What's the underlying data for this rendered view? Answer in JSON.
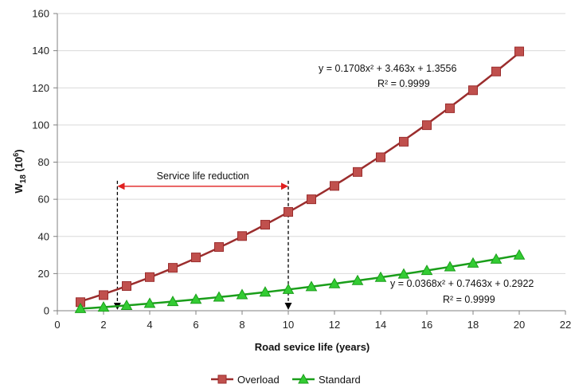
{
  "chart_data": {
    "type": "scatter",
    "xlabel": "Road sevice life (years)",
    "ylabel_main": "W",
    "ylabel_sub": "18",
    "ylabel_suffix": " (10",
    "ylabel_sup": "6",
    "ylabel_close": ")",
    "xlim": [
      0,
      22
    ],
    "ylim": [
      0,
      160
    ],
    "xticks": [
      0,
      2,
      4,
      6,
      8,
      10,
      12,
      14,
      16,
      18,
      20,
      22
    ],
    "yticks": [
      0,
      20,
      40,
      60,
      80,
      100,
      120,
      140,
      160
    ],
    "grid": "horizontal",
    "legend_position": "bottom",
    "series": [
      {
        "name": "Overload",
        "color": "#9b2d2d",
        "marker": "square",
        "marker_color": "#c0504d",
        "x": [
          1,
          2,
          3,
          4,
          5,
          6,
          7,
          8,
          9,
          10,
          11,
          12,
          13,
          14,
          15,
          16,
          17,
          18,
          19,
          20
        ],
        "y": [
          4.6,
          8.4,
          13.3,
          18.1,
          23.1,
          28.7,
          34.3,
          40.2,
          46.3,
          53.2,
          60.0,
          67.2,
          74.7,
          82.6,
          91.0,
          99.9,
          109.0,
          118.7,
          128.8,
          139.6
        ],
        "trendline": {
          "a": 0.1708,
          "b": 3.463,
          "c": 1.3556
        },
        "equation": "y = 0.1708x² + 3.463x + 1.3556",
        "r2": "R² = 0.9999"
      },
      {
        "name": "Standard",
        "color": "#1a9e1a",
        "marker": "triangle",
        "marker_color": "#33cc33",
        "x": [
          1,
          2,
          3,
          4,
          5,
          6,
          7,
          8,
          9,
          10,
          11,
          12,
          13,
          14,
          15,
          16,
          17,
          18,
          19,
          20
        ],
        "y": [
          1.1,
          1.9,
          2.8,
          3.9,
          4.9,
          6.1,
          7.3,
          8.6,
          10.0,
          11.4,
          12.9,
          14.5,
          16.2,
          17.9,
          19.7,
          21.6,
          23.6,
          25.6,
          27.7,
          29.9
        ],
        "trendline": {
          "a": 0.0368,
          "b": 0.7463,
          "c": 0.2922
        },
        "equation": "y = 0.0368x² + 0.7463x + 0.2922",
        "r2": "R² = 0.9999"
      }
    ],
    "annotation": {
      "text": "Service life reduction",
      "from_x": 2.6,
      "to_x": 10,
      "arrow_y": 67,
      "dashed_top_y": 70,
      "color": "#e02020"
    }
  }
}
